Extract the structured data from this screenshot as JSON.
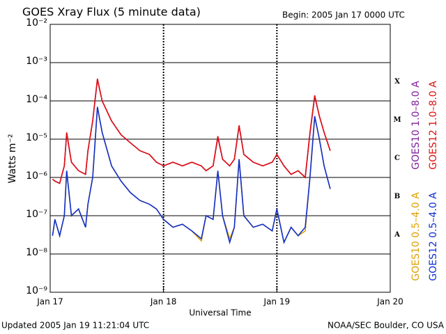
{
  "chart_data": {
    "type": "line",
    "title": "GOES Xray Flux (5 minute data)",
    "subtitle": "Begin:  2005 Jan 17 0000 UTC",
    "x_label": "Universal Time",
    "y_label": "Watts m⁻²",
    "footer_left": "Updated 2005 Jan 19 11:21:04 UTC",
    "footer_right": "NOAA/SEC Boulder, CO USA",
    "class_labels": [
      "X",
      "M",
      "C",
      "B",
      "A"
    ],
    "log_scale": true,
    "grid": true,
    "x": [
      0.5,
      1,
      2,
      3,
      3.5,
      4.5,
      6,
      7.5,
      8,
      9,
      10,
      11,
      13,
      15,
      17,
      19,
      21,
      22.5,
      24,
      26,
      28,
      30,
      32,
      33,
      34.5,
      35.5,
      36.5,
      38,
      39,
      40,
      41,
      43,
      45,
      47,
      48,
      49.5,
      51,
      52.5,
      54,
      55,
      56,
      57,
      58,
      59.3
    ],
    "xlim": [
      0,
      72
    ],
    "xticks": [
      {
        "value": 0,
        "label": "Jan 17"
      },
      {
        "value": 24,
        "label": "Jan 18"
      },
      {
        "value": 48,
        "label": "Jan 19"
      },
      {
        "value": 72,
        "label": "Jan 20"
      }
    ],
    "ylim": [
      1e-09,
      0.01
    ],
    "yticks": [
      {
        "value": 1e-09,
        "label": "10⁻⁹"
      },
      {
        "value": 1e-08,
        "label": "10⁻⁸"
      },
      {
        "value": 1e-07,
        "label": "10⁻⁷"
      },
      {
        "value": 1e-06,
        "label": "10⁻⁶"
      },
      {
        "value": 1e-05,
        "label": "10⁻⁵"
      },
      {
        "value": 0.0001,
        "label": "10⁻⁴"
      },
      {
        "value": 0.001,
        "label": "10⁻³"
      },
      {
        "value": 0.01,
        "label": "10⁻²"
      }
    ],
    "series": [
      {
        "name": "GOES10 1.0–8.0 A",
        "color": "#8020a0",
        "values": [
          9e-07,
          8e-07,
          7e-07,
          2e-06,
          1.4e-05,
          2.5e-06,
          1.5e-06,
          1.2e-06,
          5e-06,
          3e-05,
          0.00036,
          0.0001,
          3e-05,
          1.3e-05,
          8e-06,
          5e-06,
          4e-06,
          2.5e-06,
          2e-06,
          2.5e-06,
          2e-06,
          2.5e-06,
          2e-06,
          1.5e-06,
          2e-06,
          1.1e-05,
          3e-06,
          2e-06,
          3e-06,
          2.2e-05,
          4e-06,
          2.5e-06,
          2e-06,
          2.5e-06,
          4e-06,
          2e-06,
          1.2e-06,
          1.5e-06,
          1e-06,
          1.4e-05,
          0.00013,
          4e-05,
          1.5e-05,
          5e-06
        ]
      },
      {
        "name": "GOES12 1.0–8.0 A",
        "color": "#e01010",
        "values": [
          9e-07,
          8e-07,
          7e-07,
          2e-06,
          1.5e-05,
          2.5e-06,
          1.5e-06,
          1.2e-06,
          5e-06,
          3e-05,
          0.00038,
          0.0001,
          3e-05,
          1.3e-05,
          8e-06,
          5e-06,
          4e-06,
          2.5e-06,
          2e-06,
          2.5e-06,
          2e-06,
          2.5e-06,
          2e-06,
          1.5e-06,
          2e-06,
          1.2e-05,
          3e-06,
          2e-06,
          3e-06,
          2.3e-05,
          4e-06,
          2.5e-06,
          2e-06,
          2.5e-06,
          4e-06,
          2e-06,
          1.2e-06,
          1.5e-06,
          1e-06,
          1.5e-05,
          0.00014,
          4e-05,
          1.5e-05,
          5e-06
        ]
      },
      {
        "name": "GOES10 0.5–4.0 A",
        "color": "#e0a000",
        "values": [
          3e-08,
          8e-08,
          3e-08,
          1e-07,
          1.4e-06,
          1e-07,
          1.5e-07,
          5e-08,
          2e-07,
          1e-06,
          6.5e-05,
          1.5e-05,
          2e-06,
          8e-07,
          4e-07,
          2.5e-07,
          2e-07,
          1.5e-07,
          8e-08,
          5e-08,
          6e-08,
          4e-08,
          2.2e-08,
          1e-07,
          8e-08,
          1.4e-06,
          1e-07,
          2.5e-08,
          5e-08,
          3e-06,
          1e-07,
          5e-08,
          6e-08,
          4e-08,
          1.5e-07,
          2e-08,
          5e-08,
          3e-08,
          4e-08,
          1e-06,
          3.8e-05,
          1e-05,
          2e-06,
          5e-07
        ]
      },
      {
        "name": "GOES12 0.5–4.0 A",
        "color": "#1030d0",
        "values": [
          3e-08,
          8e-08,
          3e-08,
          1e-07,
          1.5e-06,
          1e-07,
          1.5e-07,
          5e-08,
          2e-07,
          1e-06,
          7e-05,
          1.5e-05,
          2e-06,
          8e-07,
          4e-07,
          2.5e-07,
          2e-07,
          1.5e-07,
          8e-08,
          5e-08,
          6e-08,
          4e-08,
          2.5e-08,
          1e-07,
          8e-08,
          1.5e-06,
          1e-07,
          2e-08,
          5e-08,
          3e-06,
          1e-07,
          5e-08,
          6e-08,
          4e-08,
          1.5e-07,
          2e-08,
          5e-08,
          3e-08,
          5e-08,
          1e-06,
          4e-05,
          1e-05,
          2e-06,
          5e-07
        ]
      }
    ]
  }
}
